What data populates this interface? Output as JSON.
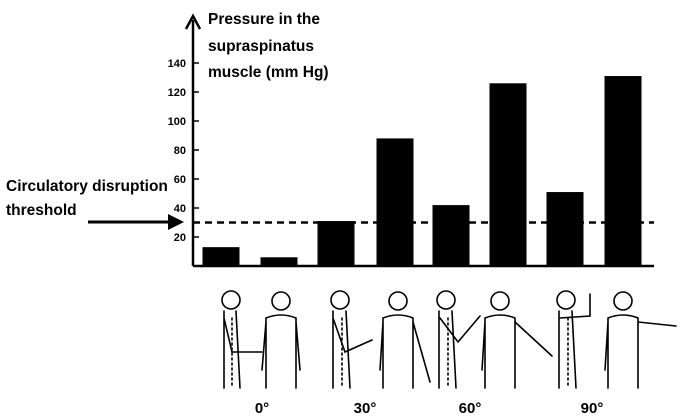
{
  "chart_data": {
    "type": "bar",
    "ylabel_lines": [
      "Pressure in the",
      "supraspinatus",
      "muscle (mm Hg)"
    ],
    "yticks": [
      20,
      40,
      60,
      80,
      100,
      120,
      140
    ],
    "ylim": [
      0,
      160
    ],
    "grid": false,
    "values": [
      13,
      6,
      31,
      88,
      42,
      126,
      51,
      131
    ],
    "angle_labels": [
      "0°",
      "30°",
      "60°",
      "90°"
    ],
    "threshold": {
      "value": 30,
      "label_lines": [
        "Circulatory disruption",
        "threshold"
      ]
    },
    "bar_color": "#000000"
  }
}
